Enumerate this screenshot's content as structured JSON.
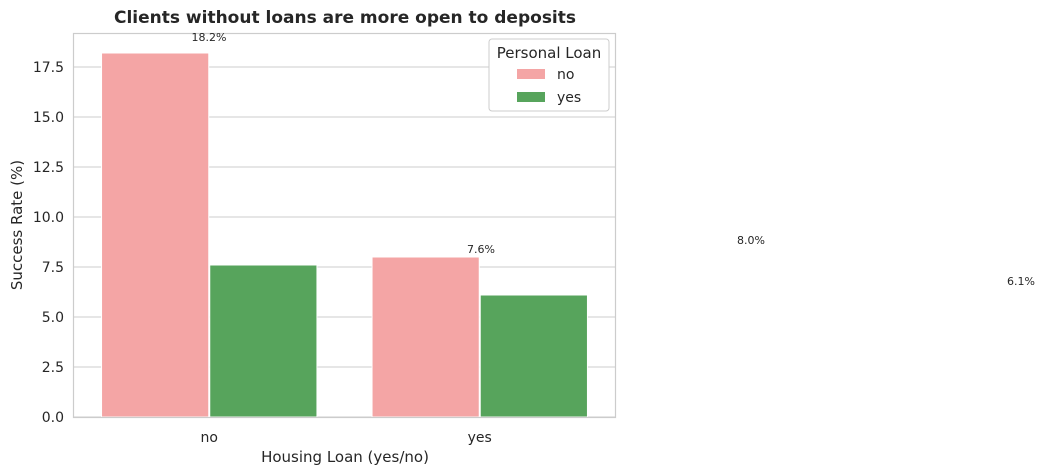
{
  "chart_data": {
    "type": "bar",
    "title": "Clients without loans are more open to deposits",
    "xlabel": "Housing Loan (yes/no)",
    "ylabel": "Success Rate (%)",
    "categories": [
      "no",
      "yes"
    ],
    "series": [
      {
        "name": "no",
        "color": "#f4a5a5",
        "values": [
          18.2,
          8.0
        ]
      },
      {
        "name": "yes",
        "color": "#57a45c",
        "values": [
          7.6,
          6.1
        ]
      }
    ],
    "ylim": [
      0,
      19.2
    ],
    "yticks": [
      "0.0",
      "2.5",
      "5.0",
      "7.5",
      "10.0",
      "12.5",
      "15.0",
      "17.5"
    ],
    "ytick_values": [
      0,
      2.5,
      5,
      7.5,
      10,
      12.5,
      15,
      17.5
    ],
    "grid": "horizontal",
    "legend": {
      "title": "Personal Loan",
      "placement": "top-right"
    },
    "data_labels": [
      "18.2%",
      "7.6%",
      "8.0%",
      "6.1%"
    ]
  }
}
